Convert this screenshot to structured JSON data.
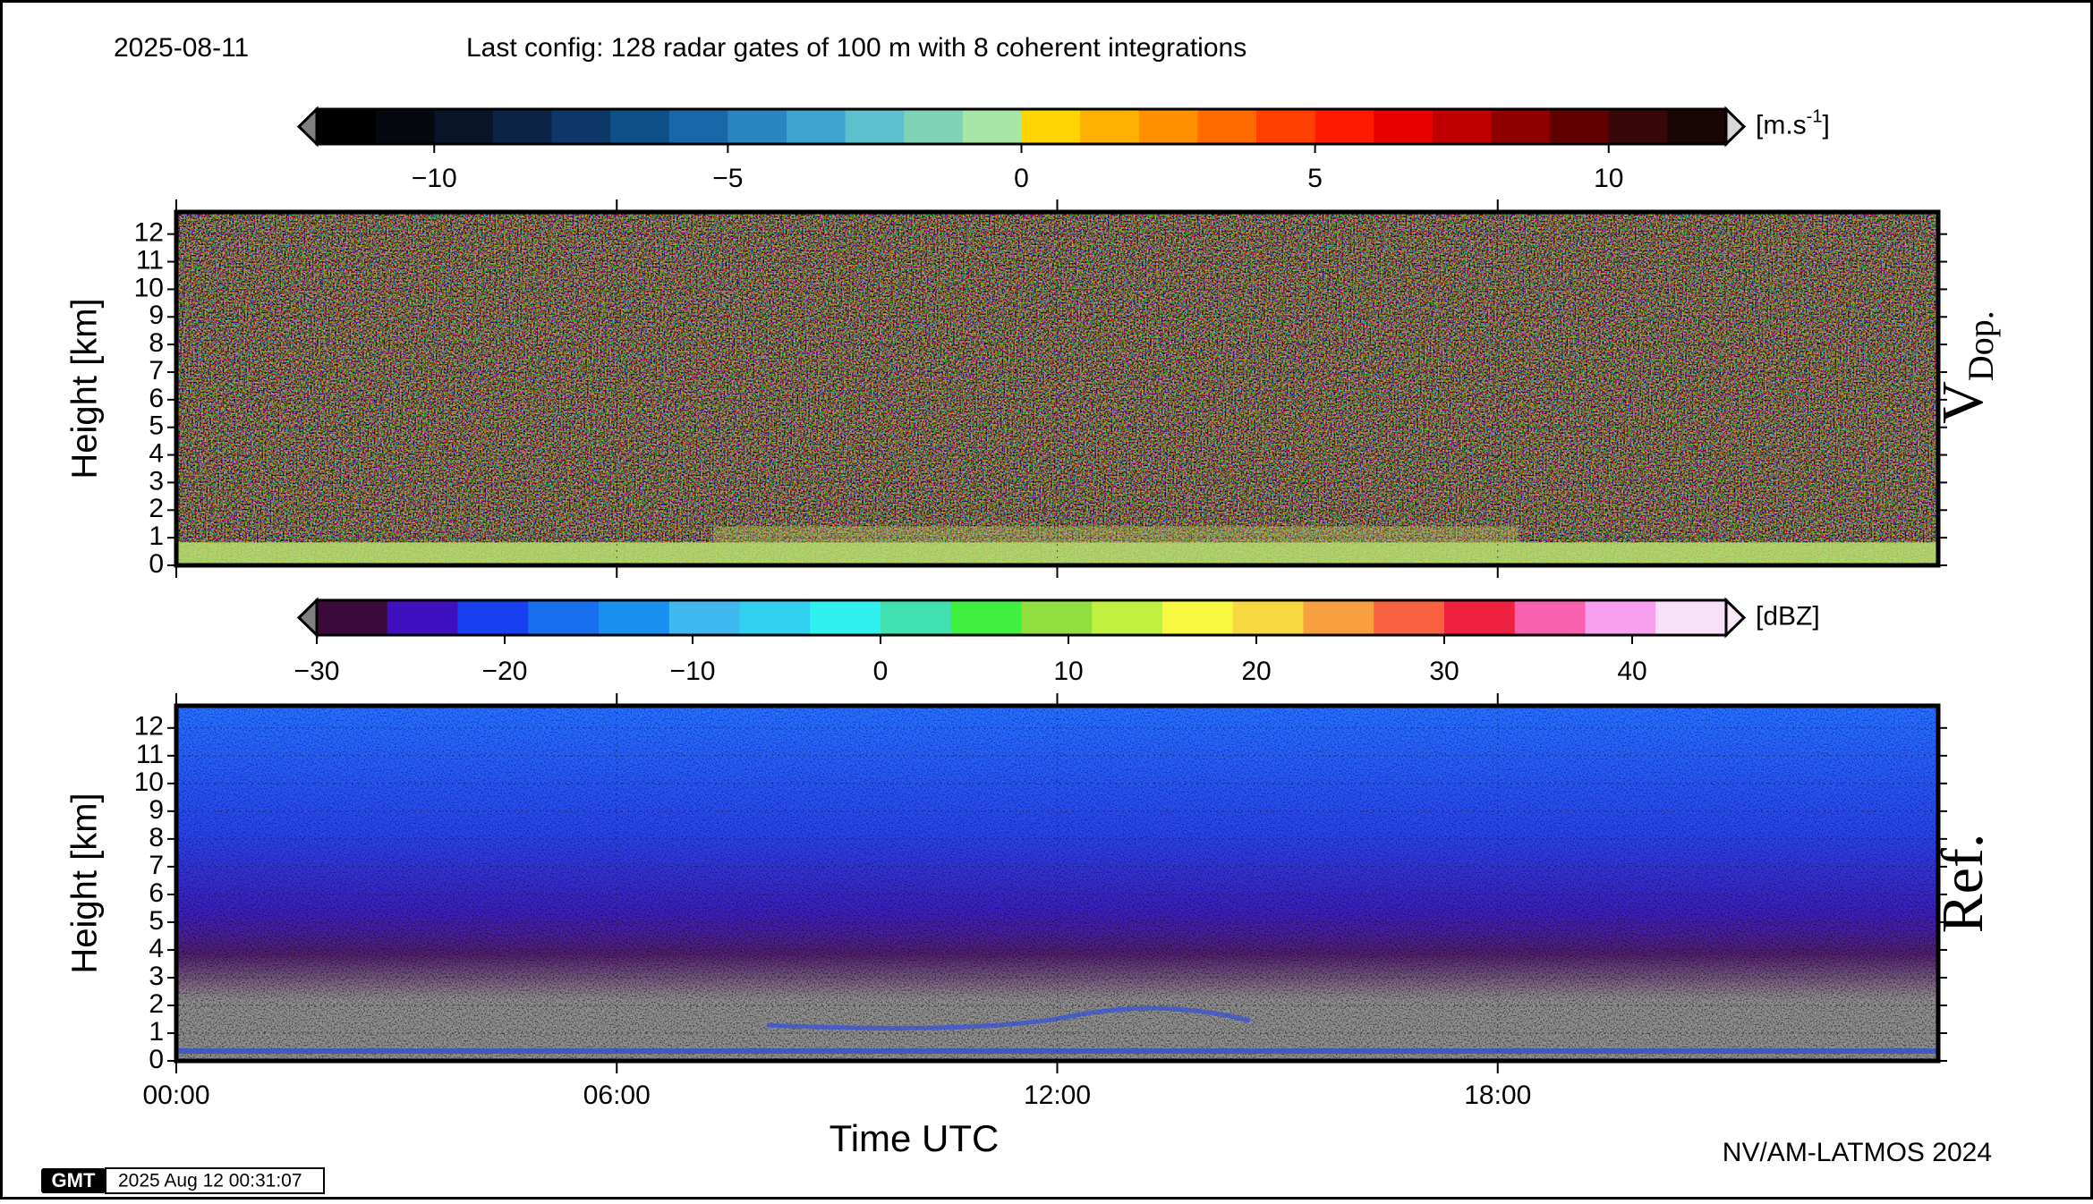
{
  "header": {
    "date": "2025-08-11",
    "title": "Last config: 128 radar gates of 100 m with 8 coherent integrations"
  },
  "chart_data": [
    {
      "type": "heatmap",
      "panel_label": "V",
      "panel_label_sub": "Dop.",
      "y_label": "Height [km]",
      "ylim": [
        0,
        12.8
      ],
      "yticks": [
        0,
        1,
        2,
        3,
        4,
        5,
        6,
        7,
        8,
        9,
        10,
        11,
        12
      ],
      "xlim": [
        0,
        24
      ],
      "xticks": [
        0,
        6,
        12,
        18
      ],
      "grid": true,
      "colorbar": {
        "unit": "[m.s",
        "unit_sup": "-1",
        "unit_end": "]",
        "lim": [
          -12,
          12
        ],
        "ticks": [
          {
            "value": -10,
            "label": "−10"
          },
          {
            "value": -5,
            "label": "−5"
          },
          0,
          5,
          10
        ],
        "colors": [
          "#000000",
          "#05080f",
          "#0a1428",
          "#0b2345",
          "#0c3766",
          "#0f4f88",
          "#1867a8",
          "#2a85c0",
          "#3fa3cf",
          "#5ec0cf",
          "#7fd4b8",
          "#a6e6a8",
          "#ffd400",
          "#ffb000",
          "#ff9000",
          "#ff6a00",
          "#ff4000",
          "#ff1a00",
          "#e80000",
          "#c00000",
          "#900000",
          "#600000",
          "#380808",
          "#1a0505"
        ],
        "under_color": "#808080",
        "over_color": "#d8d8d8"
      }
    },
    {
      "type": "heatmap",
      "panel_label": "Ref.",
      "y_label": "Height [km]",
      "x_label": "Time UTC",
      "ylim": [
        0,
        12.8
      ],
      "yticks": [
        0,
        1,
        2,
        3,
        4,
        5,
        6,
        7,
        8,
        9,
        10,
        11,
        12
      ],
      "xlim": [
        0,
        24
      ],
      "xticks": [
        {
          "value": 0,
          "label": "00:00"
        },
        {
          "value": 6,
          "label": "06:00"
        },
        {
          "value": 12,
          "label": "12:00"
        },
        {
          "value": 18,
          "label": "18:00"
        }
      ],
      "grid": true,
      "colorbar": {
        "unit": "[dBZ]",
        "lim": [
          -30,
          45
        ],
        "ticks": [
          {
            "value": -30,
            "label": "−30"
          },
          {
            "value": -20,
            "label": "−20"
          },
          {
            "value": -10,
            "label": "−10"
          },
          0,
          10,
          20,
          30,
          40
        ],
        "colors": [
          "#3a0a3a",
          "#4010c0",
          "#1840f0",
          "#1870f0",
          "#1890f0",
          "#40b8f0",
          "#30d0f0",
          "#30f0f0",
          "#40e0b0",
          "#40f040",
          "#90e040",
          "#c0f040",
          "#f8f840",
          "#f8d840",
          "#f8a040",
          "#f86040",
          "#f02040",
          "#f860b0",
          "#f8a0f0",
          "#f8e0f8"
        ],
        "under_color": "#808080",
        "over_color": "#f8e8f8"
      }
    }
  ],
  "footer": {
    "credit": "NV/AM-LATMOS 2024",
    "logo": "GMT",
    "timestamp": "2025 Aug 12 00:31:07"
  }
}
